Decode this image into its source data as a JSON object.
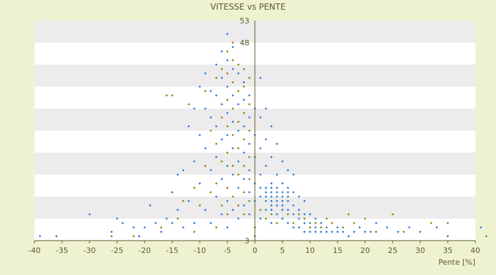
{
  "chart_data": {
    "type": "scatter",
    "title": "VITESSE vs PENTE",
    "xlabel": "Pente [%]",
    "ylabel": "",
    "xlim": [
      -40,
      40
    ],
    "ylim": [
      3,
      53
    ],
    "x_ticks": [
      "-40",
      "-35",
      "-30",
      "-25",
      "-20",
      "-15",
      "-10",
      "-5",
      "0",
      "5",
      "10",
      "15",
      "20",
      "25",
      "30",
      "35",
      "40"
    ],
    "y_tick_values": [
      3,
      48,
      53
    ],
    "y_tick_labels": [
      "3",
      "48",
      "53"
    ],
    "y_band_step": 5,
    "grid": "alternating horizontal bands",
    "legend": "none",
    "colors": {
      "background": "#eef2d0",
      "plot_band_light": "#ffffff",
      "plot_band_dark": "#ececec",
      "axis": "#5a5a2a",
      "text": "#5a5a2a",
      "series_blue": "#2f7fd6",
      "series_olive": "#8a8a10"
    },
    "series": [
      {
        "color": "#2f7fd6",
        "points": [
          [
            -39,
            4
          ],
          [
            -36,
            4
          ],
          [
            -30,
            9
          ],
          [
            -26,
            5
          ],
          [
            -25,
            8
          ],
          [
            -24,
            7
          ],
          [
            -22,
            6
          ],
          [
            -21,
            4
          ],
          [
            -20,
            6
          ],
          [
            -19,
            11
          ],
          [
            -18,
            7
          ],
          [
            -17,
            5
          ],
          [
            -16,
            8
          ],
          [
            -15,
            7
          ],
          [
            -15,
            14
          ],
          [
            -14,
            18
          ],
          [
            -14,
            10
          ],
          [
            -13,
            6
          ],
          [
            -13,
            19
          ],
          [
            -12,
            29
          ],
          [
            -12,
            12
          ],
          [
            -11,
            7
          ],
          [
            -11,
            21
          ],
          [
            -11,
            33
          ],
          [
            -10,
            16
          ],
          [
            -10,
            27
          ],
          [
            -10,
            38
          ],
          [
            -9,
            10
          ],
          [
            -9,
            24
          ],
          [
            -9,
            33
          ],
          [
            -9,
            41
          ],
          [
            -8,
            7
          ],
          [
            -8,
            19
          ],
          [
            -8,
            31
          ],
          [
            -8,
            37
          ],
          [
            -7,
            13
          ],
          [
            -7,
            22
          ],
          [
            -7,
            29
          ],
          [
            -7,
            36
          ],
          [
            -7,
            43
          ],
          [
            -6,
            9
          ],
          [
            -6,
            17
          ],
          [
            -6,
            26
          ],
          [
            -6,
            34
          ],
          [
            -6,
            40
          ],
          [
            -6,
            46
          ],
          [
            -5,
            6
          ],
          [
            -5,
            12
          ],
          [
            -5,
            20
          ],
          [
            -5,
            27
          ],
          [
            -5,
            32
          ],
          [
            -5,
            38
          ],
          [
            -5,
            44
          ],
          [
            -5,
            50
          ],
          [
            -4,
            10
          ],
          [
            -4,
            18
          ],
          [
            -4,
            24
          ],
          [
            -4,
            30
          ],
          [
            -4,
            36
          ],
          [
            -4,
            42
          ],
          [
            -4,
            47
          ],
          [
            -3,
            8
          ],
          [
            -3,
            15
          ],
          [
            -3,
            21
          ],
          [
            -3,
            28
          ],
          [
            -3,
            34
          ],
          [
            -3,
            41
          ],
          [
            -2,
            11
          ],
          [
            -2,
            17
          ],
          [
            -2,
            23
          ],
          [
            -2,
            29
          ],
          [
            -2,
            35
          ],
          [
            -2,
            39
          ],
          [
            -1,
            9
          ],
          [
            -1,
            14
          ],
          [
            -1,
            19
          ],
          [
            -1,
            25
          ],
          [
            -1,
            31
          ],
          [
            -1,
            36
          ],
          [
            0,
            12
          ],
          [
            0,
            16
          ],
          [
            0,
            22
          ],
          [
            0,
            27
          ],
          [
            0,
            33
          ],
          [
            1,
            8
          ],
          [
            1,
            13
          ],
          [
            1,
            18
          ],
          [
            1,
            24
          ],
          [
            1,
            31
          ],
          [
            1,
            40
          ],
          [
            2,
            10
          ],
          [
            2,
            14
          ],
          [
            2,
            20
          ],
          [
            2,
            26
          ],
          [
            2,
            33
          ],
          [
            3,
            7
          ],
          [
            3,
            11
          ],
          [
            3,
            13
          ],
          [
            3,
            16
          ],
          [
            3,
            22
          ],
          [
            3,
            29
          ],
          [
            4,
            9
          ],
          [
            4,
            12
          ],
          [
            4,
            14
          ],
          [
            4,
            18
          ],
          [
            4,
            25
          ],
          [
            5,
            8
          ],
          [
            5,
            11
          ],
          [
            5,
            13
          ],
          [
            5,
            16
          ],
          [
            5,
            21
          ],
          [
            6,
            7
          ],
          [
            6,
            10
          ],
          [
            6,
            12
          ],
          [
            6,
            15
          ],
          [
            6,
            19
          ],
          [
            7,
            6
          ],
          [
            7,
            9
          ],
          [
            7,
            11
          ],
          [
            7,
            14
          ],
          [
            7,
            18
          ],
          [
            8,
            6
          ],
          [
            8,
            8
          ],
          [
            8,
            10
          ],
          [
            8,
            13
          ],
          [
            9,
            5
          ],
          [
            9,
            7
          ],
          [
            9,
            9
          ],
          [
            9,
            12
          ],
          [
            10,
            5
          ],
          [
            10,
            7
          ],
          [
            10,
            9
          ],
          [
            11,
            5
          ],
          [
            11,
            6
          ],
          [
            11,
            8
          ],
          [
            12,
            5
          ],
          [
            12,
            7
          ],
          [
            13,
            5
          ],
          [
            13,
            6
          ],
          [
            14,
            5
          ],
          [
            15,
            5
          ],
          [
            15,
            6
          ],
          [
            16,
            5
          ],
          [
            17,
            4
          ],
          [
            18,
            5
          ],
          [
            19,
            6
          ],
          [
            20,
            5
          ],
          [
            21,
            5
          ],
          [
            22,
            7
          ],
          [
            24,
            6
          ],
          [
            26,
            5
          ],
          [
            28,
            6
          ],
          [
            30,
            5
          ],
          [
            33,
            6
          ],
          [
            35,
            4
          ],
          [
            41,
            6
          ],
          [
            3,
            14
          ],
          [
            4,
            13
          ],
          [
            2,
            12
          ],
          [
            5,
            14
          ],
          [
            3,
            12
          ],
          [
            4,
            15
          ],
          [
            2,
            15
          ],
          [
            6,
            13
          ],
          [
            3,
            15
          ],
          [
            4,
            11
          ],
          [
            5,
            12
          ],
          [
            2,
            13
          ],
          [
            1,
            15
          ],
          [
            3,
            10
          ],
          [
            6,
            14
          ],
          [
            5,
            10
          ]
        ]
      },
      {
        "color": "#8a8a10",
        "points": [
          [
            -36,
            4
          ],
          [
            -26,
            4
          ],
          [
            -22,
            4
          ],
          [
            -17,
            6
          ],
          [
            -16,
            36
          ],
          [
            -15,
            36
          ],
          [
            -14,
            8
          ],
          [
            -13,
            12
          ],
          [
            -12,
            34
          ],
          [
            -11,
            5
          ],
          [
            -11,
            15
          ],
          [
            -10,
            11
          ],
          [
            -9,
            20
          ],
          [
            -9,
            37
          ],
          [
            -8,
            14
          ],
          [
            -8,
            28
          ],
          [
            -7,
            6
          ],
          [
            -7,
            16
          ],
          [
            -7,
            25
          ],
          [
            -7,
            40
          ],
          [
            -6,
            11
          ],
          [
            -6,
            21
          ],
          [
            -6,
            31
          ],
          [
            -6,
            42
          ],
          [
            -5,
            9
          ],
          [
            -5,
            15
          ],
          [
            -5,
            23
          ],
          [
            -5,
            29
          ],
          [
            -5,
            35
          ],
          [
            -5,
            41
          ],
          [
            -5,
            46
          ],
          [
            -4,
            13
          ],
          [
            -4,
            20
          ],
          [
            -4,
            27
          ],
          [
            -4,
            33
          ],
          [
            -4,
            39
          ],
          [
            -4,
            44
          ],
          [
            -4,
            48
          ],
          [
            -3,
            11
          ],
          [
            -3,
            18
          ],
          [
            -3,
            24
          ],
          [
            -3,
            30
          ],
          [
            -3,
            37
          ],
          [
            -3,
            43
          ],
          [
            -2,
            9
          ],
          [
            -2,
            14
          ],
          [
            -2,
            20
          ],
          [
            -2,
            26
          ],
          [
            -2,
            32
          ],
          [
            -2,
            38
          ],
          [
            -2,
            42
          ],
          [
            -1,
            12
          ],
          [
            -1,
            17
          ],
          [
            -1,
            22
          ],
          [
            -1,
            28
          ],
          [
            -1,
            34
          ],
          [
            -1,
            40
          ],
          [
            0,
            4
          ],
          [
            0,
            6
          ],
          [
            1,
            10
          ],
          [
            2,
            8
          ],
          [
            3,
            9
          ],
          [
            4,
            7
          ],
          [
            5,
            8
          ],
          [
            6,
            9
          ],
          [
            7,
            7
          ],
          [
            8,
            9
          ],
          [
            9,
            8
          ],
          [
            10,
            6
          ],
          [
            11,
            7
          ],
          [
            12,
            6
          ],
          [
            13,
            8
          ],
          [
            14,
            7
          ],
          [
            16,
            6
          ],
          [
            17,
            9
          ],
          [
            18,
            7
          ],
          [
            20,
            8
          ],
          [
            22,
            5
          ],
          [
            25,
            9
          ],
          [
            27,
            5
          ],
          [
            32,
            7
          ],
          [
            35,
            7
          ],
          [
            42,
            4
          ]
        ]
      }
    ]
  }
}
